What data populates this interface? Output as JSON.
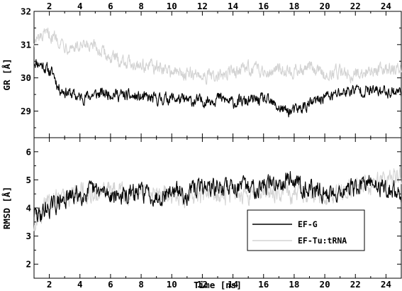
{
  "chart_data": [
    {
      "type": "line",
      "panel": "top",
      "title": "",
      "xlabel": "",
      "ylabel": "GR [Å]",
      "xlim": [
        1,
        25
      ],
      "ylim": [
        28.2,
        32
      ],
      "x_ticks": [
        2,
        4,
        6,
        8,
        10,
        12,
        14,
        16,
        18,
        20,
        22,
        24
      ],
      "x_tick_labels": [
        "2",
        "4",
        "6",
        "8",
        "10",
        "12",
        "14",
        "16",
        "18",
        "20",
        "22",
        "24"
      ],
      "y_ticks": [
        29,
        30,
        31,
        32
      ],
      "y_tick_labels": [
        "29",
        "30",
        "31",
        "32"
      ],
      "series": [
        {
          "name": "EF-G",
          "color": "#000000",
          "noise": 0.18,
          "x": [
            1,
            1.5,
            2,
            2.3,
            2.6,
            3,
            3.5,
            4,
            5,
            6,
            7,
            8,
            9,
            10,
            11,
            12,
            13,
            14,
            15,
            16,
            17,
            17.5,
            18,
            18.5,
            19,
            19.5,
            20,
            20.5,
            21,
            22,
            23,
            24,
            25
          ],
          "y": [
            30.5,
            30.4,
            30.2,
            30.1,
            29.7,
            29.6,
            29.5,
            29.4,
            29.5,
            29.55,
            29.45,
            29.4,
            29.35,
            29.4,
            29.3,
            29.3,
            29.4,
            29.25,
            29.3,
            29.35,
            29.1,
            29.0,
            29.0,
            29.1,
            29.2,
            29.3,
            29.45,
            29.45,
            29.55,
            29.65,
            29.6,
            29.6,
            29.6
          ]
        },
        {
          "name": "EF-Tu:tRNA",
          "color": "#d3d3d3",
          "noise": 0.2,
          "x": [
            1,
            1.5,
            2,
            2.5,
            3,
            4,
            5,
            6,
            7,
            8,
            9,
            10,
            11,
            12,
            13,
            14,
            15,
            16,
            17,
            18,
            19,
            20,
            21,
            22,
            23,
            24,
            25
          ],
          "y": [
            31.1,
            31.2,
            31.3,
            31.2,
            31.0,
            30.9,
            30.9,
            30.6,
            30.5,
            30.4,
            30.3,
            30.2,
            30.1,
            30.1,
            30.0,
            30.2,
            30.3,
            30.2,
            30.3,
            30.2,
            30.3,
            30.1,
            30.2,
            30.1,
            30.2,
            30.3,
            30.3
          ]
        }
      ]
    },
    {
      "type": "line",
      "panel": "bottom",
      "title": "",
      "xlabel": "Time [ns]",
      "ylabel": "RMSD [Å]",
      "xlim": [
        1,
        25
      ],
      "ylim": [
        1.5,
        6.5
      ],
      "x_ticks": [
        2,
        4,
        6,
        8,
        10,
        12,
        14,
        16,
        18,
        20,
        22,
        24
      ],
      "x_tick_labels": [
        "2",
        "4",
        "6",
        "8",
        "10",
        "12",
        "14",
        "16",
        "18",
        "20",
        "22",
        "24"
      ],
      "y_ticks": [
        2,
        3,
        4,
        5,
        6
      ],
      "y_tick_labels": [
        "2",
        "3",
        "4",
        "5",
        "6"
      ],
      "legend": {
        "position": "bottom-right",
        "entries": [
          {
            "label": "EF-G",
            "color": "#000000"
          },
          {
            "label": "EF-Tu:tRNA",
            "color": "#d3d3d3"
          }
        ]
      },
      "series": [
        {
          "name": "EF-G",
          "color": "#000000",
          "noise": 0.32,
          "x": [
            1,
            1.3,
            1.6,
            2,
            3,
            4,
            5,
            6,
            7,
            8,
            9,
            10,
            11,
            12,
            13,
            14,
            15,
            16,
            17,
            17.5,
            18,
            18.5,
            19,
            20,
            21,
            22,
            23,
            24,
            25
          ],
          "y": [
            3.8,
            3.7,
            3.9,
            4.0,
            4.3,
            4.5,
            4.6,
            4.5,
            4.4,
            4.6,
            4.4,
            4.6,
            4.5,
            4.8,
            4.7,
            4.8,
            4.7,
            4.8,
            4.9,
            5.1,
            5.0,
            4.8,
            4.7,
            4.5,
            4.6,
            4.7,
            4.9,
            4.7,
            4.5
          ]
        },
        {
          "name": "EF-Tu:tRNA",
          "color": "#d3d3d3",
          "noise": 0.34,
          "x": [
            1,
            1.3,
            1.6,
            2,
            3,
            4,
            5,
            6,
            7,
            8,
            9,
            10,
            11,
            12,
            13,
            14,
            15,
            16,
            17,
            18,
            19,
            20,
            21,
            22,
            23,
            24,
            25
          ],
          "y": [
            3.3,
            3.7,
            4.0,
            4.3,
            4.4,
            4.6,
            4.5,
            4.6,
            4.5,
            4.5,
            4.6,
            4.5,
            4.4,
            4.5,
            4.6,
            4.4,
            4.5,
            4.6,
            4.6,
            4.5,
            4.6,
            4.4,
            4.6,
            4.7,
            4.8,
            5.0,
            5.1
          ]
        }
      ]
    }
  ]
}
